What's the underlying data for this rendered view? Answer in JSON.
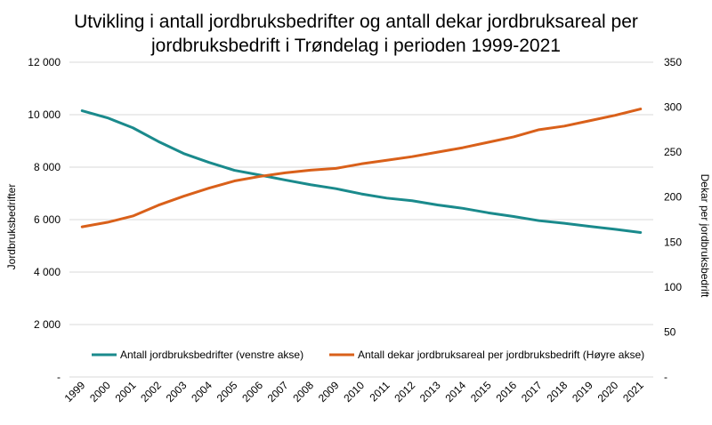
{
  "chart_data": {
    "type": "line",
    "title_lines": [
      "Utvikling i antall jordbruksbedrifter og antall dekar jordbruksareal per",
      "jordbruksbedrift i Trøndelag i perioden 1999-2021"
    ],
    "categories": [
      "1999",
      "2000",
      "2001",
      "2002",
      "2003",
      "2004",
      "2005",
      "2006",
      "2007",
      "2008",
      "2009",
      "2010",
      "2011",
      "2012",
      "2013",
      "2014",
      "2015",
      "2016",
      "2017",
      "2018",
      "2019",
      "2020",
      "2021"
    ],
    "ylabel_left": "Jordbruksbedrifter",
    "ylabel_right": "Dekar per jordbruksbedrift",
    "ylim_left": [
      0,
      12000
    ],
    "ylim_right": [
      0,
      350
    ],
    "yticks_left": [
      "-",
      "2 000",
      "4 000",
      "6 000",
      "8 000",
      "10 000",
      "12 000"
    ],
    "yticks_right": [
      "-",
      "50",
      "100",
      "150",
      "200",
      "250",
      "300",
      "350"
    ],
    "series": [
      {
        "name": "Antall jordbruksbedrifter (venstre akse)",
        "axis": "left",
        "color": "#1a8a8c",
        "values": [
          10150,
          9880,
          9500,
          8980,
          8520,
          8180,
          7880,
          7700,
          7510,
          7330,
          7180,
          6980,
          6820,
          6720,
          6560,
          6430,
          6260,
          6120,
          5960,
          5860,
          5740,
          5630,
          5510
        ]
      },
      {
        "name": "Antall dekar jordbruksareal per jordbruksbedrift (Høyre akse)",
        "axis": "right",
        "color": "#d9601a",
        "values": [
          167,
          172,
          179,
          191,
          201,
          210,
          218,
          223,
          227,
          230,
          232,
          237,
          241,
          245,
          250,
          255,
          261,
          267,
          275,
          279,
          285,
          291,
          298
        ]
      }
    ]
  }
}
